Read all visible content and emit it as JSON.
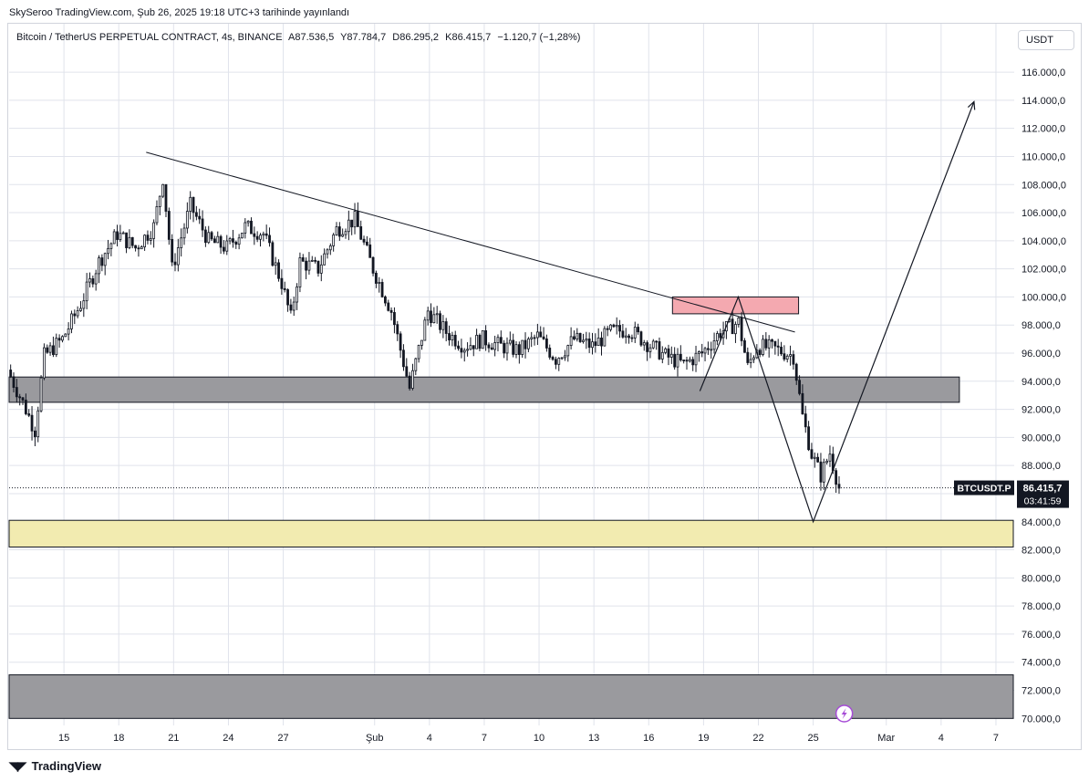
{
  "header": {
    "publisher_line": "SkySeroo TradingView.com, Şub 26, 2025 19:18 UTC+3 tarihinde yayınlandı"
  },
  "symbol": {
    "title": "Bitcoin / TetherUS PERPETUAL CONTRACT, 4s, BINANCE",
    "open": "A87.536,5",
    "high": "Y87.784,7",
    "low": "D86.295,2",
    "close": "K86.415,7",
    "change": "−1.120,7 (−1,28%)"
  },
  "currency_button": {
    "label": "USDT"
  },
  "footer": {
    "brand": "TradingView",
    "logo_icon": "tradingview-logo-icon"
  },
  "price_label": {
    "ticker": "BTCUSDT.P",
    "price": "86.415,7",
    "countdown": "03:41:59",
    "bg": "#131722"
  },
  "colors": {
    "background": "#ffffff",
    "grid": "#e0e3eb",
    "candle": "#131722",
    "zone_gray": "#9a9a9e",
    "zone_yellow": "#f2ebb0",
    "zone_red": "#f4a9b0",
    "lightning_accent": "#a64bd6"
  },
  "chart_data": {
    "type": "candlestick",
    "symbol": "BTCUSDT.P",
    "interval": "4s",
    "exchange": "BINANCE",
    "y_unit": "USDT",
    "ylim": [
      69500,
      117500
    ],
    "y_ticks": [
      "116.000,0",
      "114.000,0",
      "112.000,0",
      "110.000,0",
      "108.000,0",
      "106.000,0",
      "104.000,0",
      "102.000,0",
      "100.000,0",
      "98.000,0",
      "96.000,0",
      "94.000,0",
      "92.000,0",
      "90.000,0",
      "88.000,0",
      "86.000,0",
      "84.000,0",
      "82.000,0",
      "80.000,0",
      "78.000,0",
      "76.000,0",
      "74.000,0",
      "72.000,0",
      "70.000,0"
    ],
    "x_start_date": "2025-01-12",
    "x_end_date": "2025-03-08",
    "x_ticks": [
      {
        "label": "15",
        "date": "2025-01-15"
      },
      {
        "label": "18",
        "date": "2025-01-18"
      },
      {
        "label": "21",
        "date": "2025-01-21"
      },
      {
        "label": "24",
        "date": "2025-01-24"
      },
      {
        "label": "27",
        "date": "2025-01-27"
      },
      {
        "label": "Şub",
        "date": "2025-02-01"
      },
      {
        "label": "4",
        "date": "2025-02-04"
      },
      {
        "label": "7",
        "date": "2025-02-07"
      },
      {
        "label": "10",
        "date": "2025-02-10"
      },
      {
        "label": "13",
        "date": "2025-02-13"
      },
      {
        "label": "16",
        "date": "2025-02-16"
      },
      {
        "label": "19",
        "date": "2025-02-19"
      },
      {
        "label": "22",
        "date": "2025-02-22"
      },
      {
        "label": "25",
        "date": "2025-02-25"
      },
      {
        "label": "Mar",
        "date": "2025-03-01"
      },
      {
        "label": "4",
        "date": "2025-03-04"
      },
      {
        "label": "7",
        "date": "2025-03-07"
      }
    ],
    "price_path": [
      [
        "2025-01-12",
        94800
      ],
      [
        "2025-01-13",
        92000
      ],
      [
        "2025-01-13.5",
        90500
      ],
      [
        "2025-01-14",
        95800
      ],
      [
        "2025-01-15",
        97000
      ],
      [
        "2025-01-16",
        99500
      ],
      [
        "2025-01-17",
        102500
      ],
      [
        "2025-01-18",
        104500
      ],
      [
        "2025-01-19",
        103500
      ],
      [
        "2025-01-20",
        105000
      ],
      [
        "2025-01-20.5",
        108500
      ],
      [
        "2025-01-21",
        102000
      ],
      [
        "2025-01-22",
        106500
      ],
      [
        "2025-01-23",
        104000
      ],
      [
        "2025-01-24",
        103500
      ],
      [
        "2025-01-25",
        105000
      ],
      [
        "2025-01-26",
        104500
      ],
      [
        "2025-01-27",
        101000
      ],
      [
        "2025-01-27.5",
        98500
      ],
      [
        "2025-01-28",
        102500
      ],
      [
        "2025-01-29",
        102000
      ],
      [
        "2025-01-30",
        104800
      ],
      [
        "2025-01-31",
        105500
      ],
      [
        "2025-02-01",
        102000
      ],
      [
        "2025-02-02",
        99000
      ],
      [
        "2025-02-03",
        93500
      ],
      [
        "2025-02-04",
        99000
      ],
      [
        "2025-02-05",
        97500
      ],
      [
        "2025-02-06",
        96500
      ],
      [
        "2025-02-07",
        97000
      ],
      [
        "2025-02-08",
        96500
      ],
      [
        "2025-02-09",
        96200
      ],
      [
        "2025-02-10",
        97200
      ],
      [
        "2025-02-11",
        95600
      ],
      [
        "2025-02-12",
        97000
      ],
      [
        "2025-02-13",
        96500
      ],
      [
        "2025-02-14",
        97500
      ],
      [
        "2025-02-15",
        97700
      ],
      [
        "2025-02-16",
        96700
      ],
      [
        "2025-02-17",
        95800
      ],
      [
        "2025-02-18",
        95200
      ],
      [
        "2025-02-19",
        96000
      ],
      [
        "2025-02-20",
        97500
      ],
      [
        "2025-02-21",
        98200
      ],
      [
        "2025-02-21.5",
        95000
      ],
      [
        "2025-02-22",
        96500
      ],
      [
        "2025-02-23",
        96300
      ],
      [
        "2025-02-24",
        95800
      ],
      [
        "2025-02-24.5",
        91500
      ],
      [
        "2025-02-25",
        88800
      ],
      [
        "2025-02-25.5",
        87300
      ],
      [
        "2025-02-26",
        88900
      ],
      [
        "2025-02-26.5",
        86415.7
      ]
    ],
    "annotations": {
      "trendline": {
        "from": [
          "2025-01-19.5",
          110300
        ],
        "to": [
          "2025-02-24",
          97500
        ]
      },
      "zone_resistance_red": {
        "from": [
          "2025-02-17.3",
          100000
        ],
        "to": [
          "2025-02-24.2",
          98800
        ]
      },
      "zone_support_gray": {
        "from": [
          "2025-01-12",
          94300
        ],
        "to": [
          "2025-03-05",
          92500
        ]
      },
      "zone_target_yellow": {
        "from": [
          "2025-01-12",
          84100
        ],
        "to": [
          "2025-03-08",
          82200
        ]
      },
      "zone_bottom_gray": {
        "from": [
          "2025-01-12",
          73100
        ],
        "to": [
          "2025-03-10",
          70000
        ]
      },
      "projection_path": [
        [
          "2025-02-18.8",
          93300
        ],
        [
          "2025-02-20.9",
          100000
        ],
        [
          "2025-02-25",
          84000
        ],
        [
          "2025-03-05.8",
          113900
        ]
      ]
    },
    "last_price": 86415.7
  }
}
